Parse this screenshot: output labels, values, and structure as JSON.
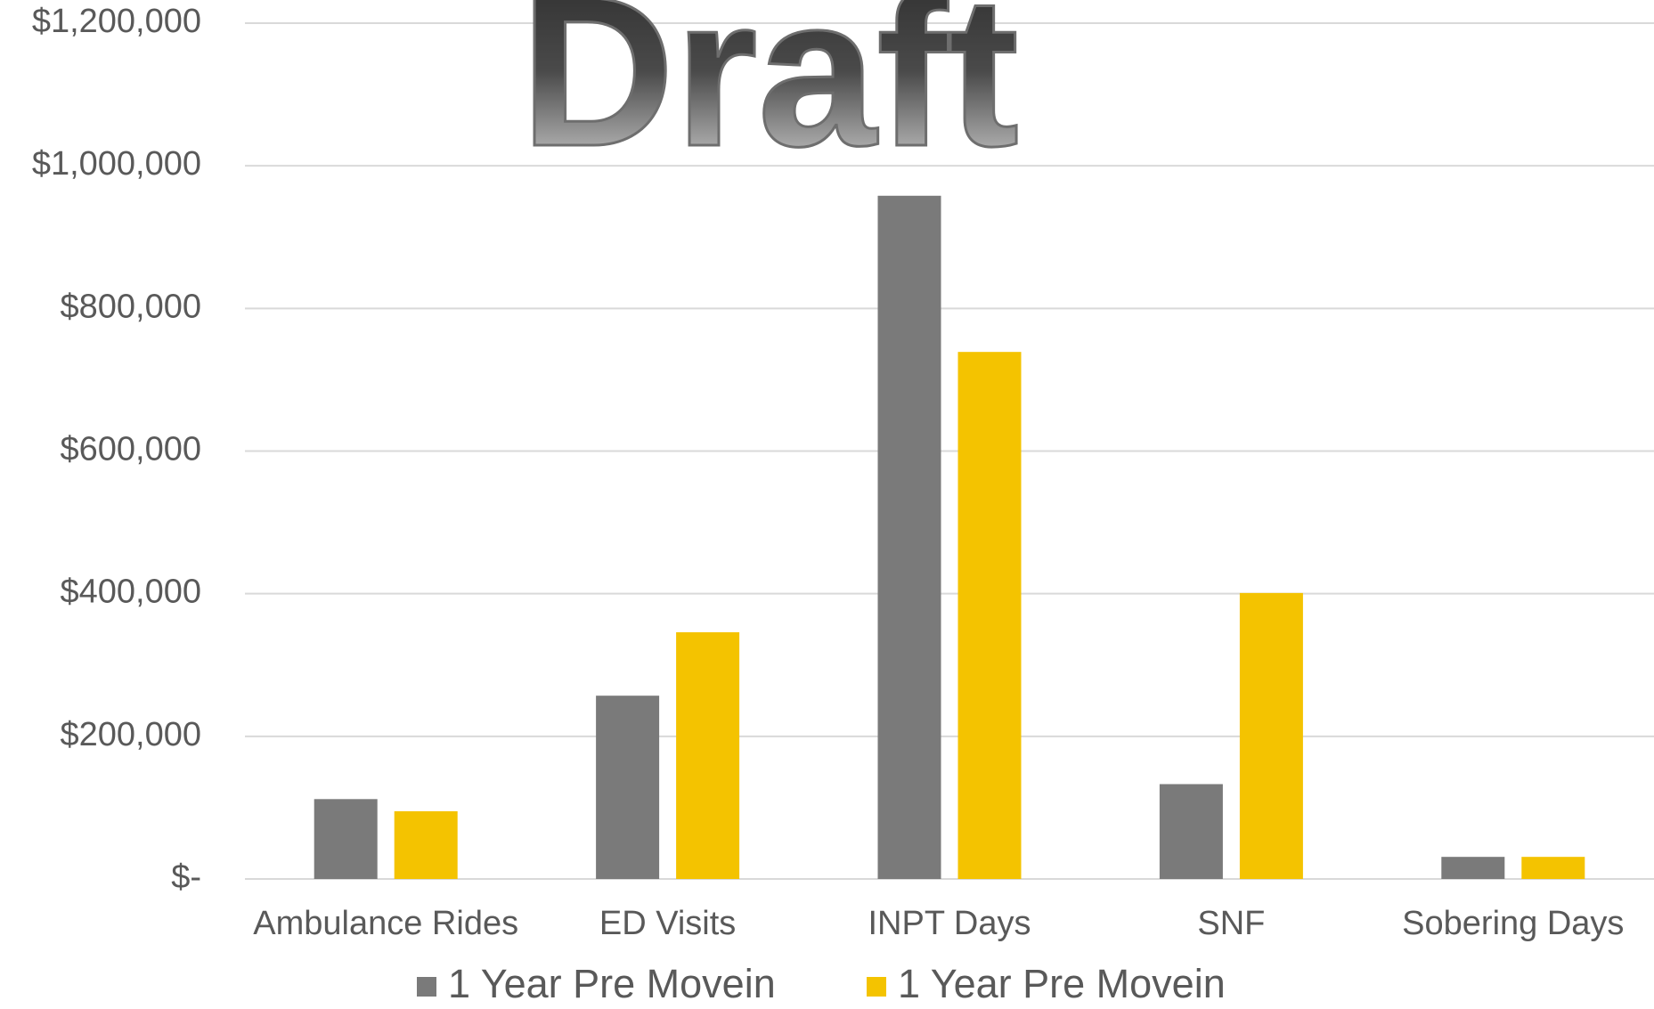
{
  "chart_data": {
    "type": "bar",
    "annotations": [
      "Draft"
    ],
    "categories": [
      "Ambulance Rides",
      "ED Visits",
      "INPT Days",
      "SNF",
      "Sobering Days"
    ],
    "series": [
      {
        "name": "1 Year Pre Movein",
        "color": "#7a7a7a",
        "values": [
          112000,
          257000,
          958000,
          133000,
          31000
        ]
      },
      {
        "name": "1 Year Pre Movein",
        "color": "#f4c300",
        "values": [
          95000,
          346000,
          739000,
          401000,
          31000
        ]
      }
    ],
    "ylim": [
      0,
      1200000
    ],
    "yticks": [
      {
        "value": 0,
        "label": "$-"
      },
      {
        "value": 200000,
        "label": "$200,000"
      },
      {
        "value": 400000,
        "label": "$400,000"
      },
      {
        "value": 600000,
        "label": "$600,000"
      },
      {
        "value": 800000,
        "label": "$800,000"
      },
      {
        "value": 1000000,
        "label": "$1,000,000"
      },
      {
        "value": 1200000,
        "label": "$1,200,000"
      }
    ],
    "grid": true,
    "legend": "bottom"
  }
}
